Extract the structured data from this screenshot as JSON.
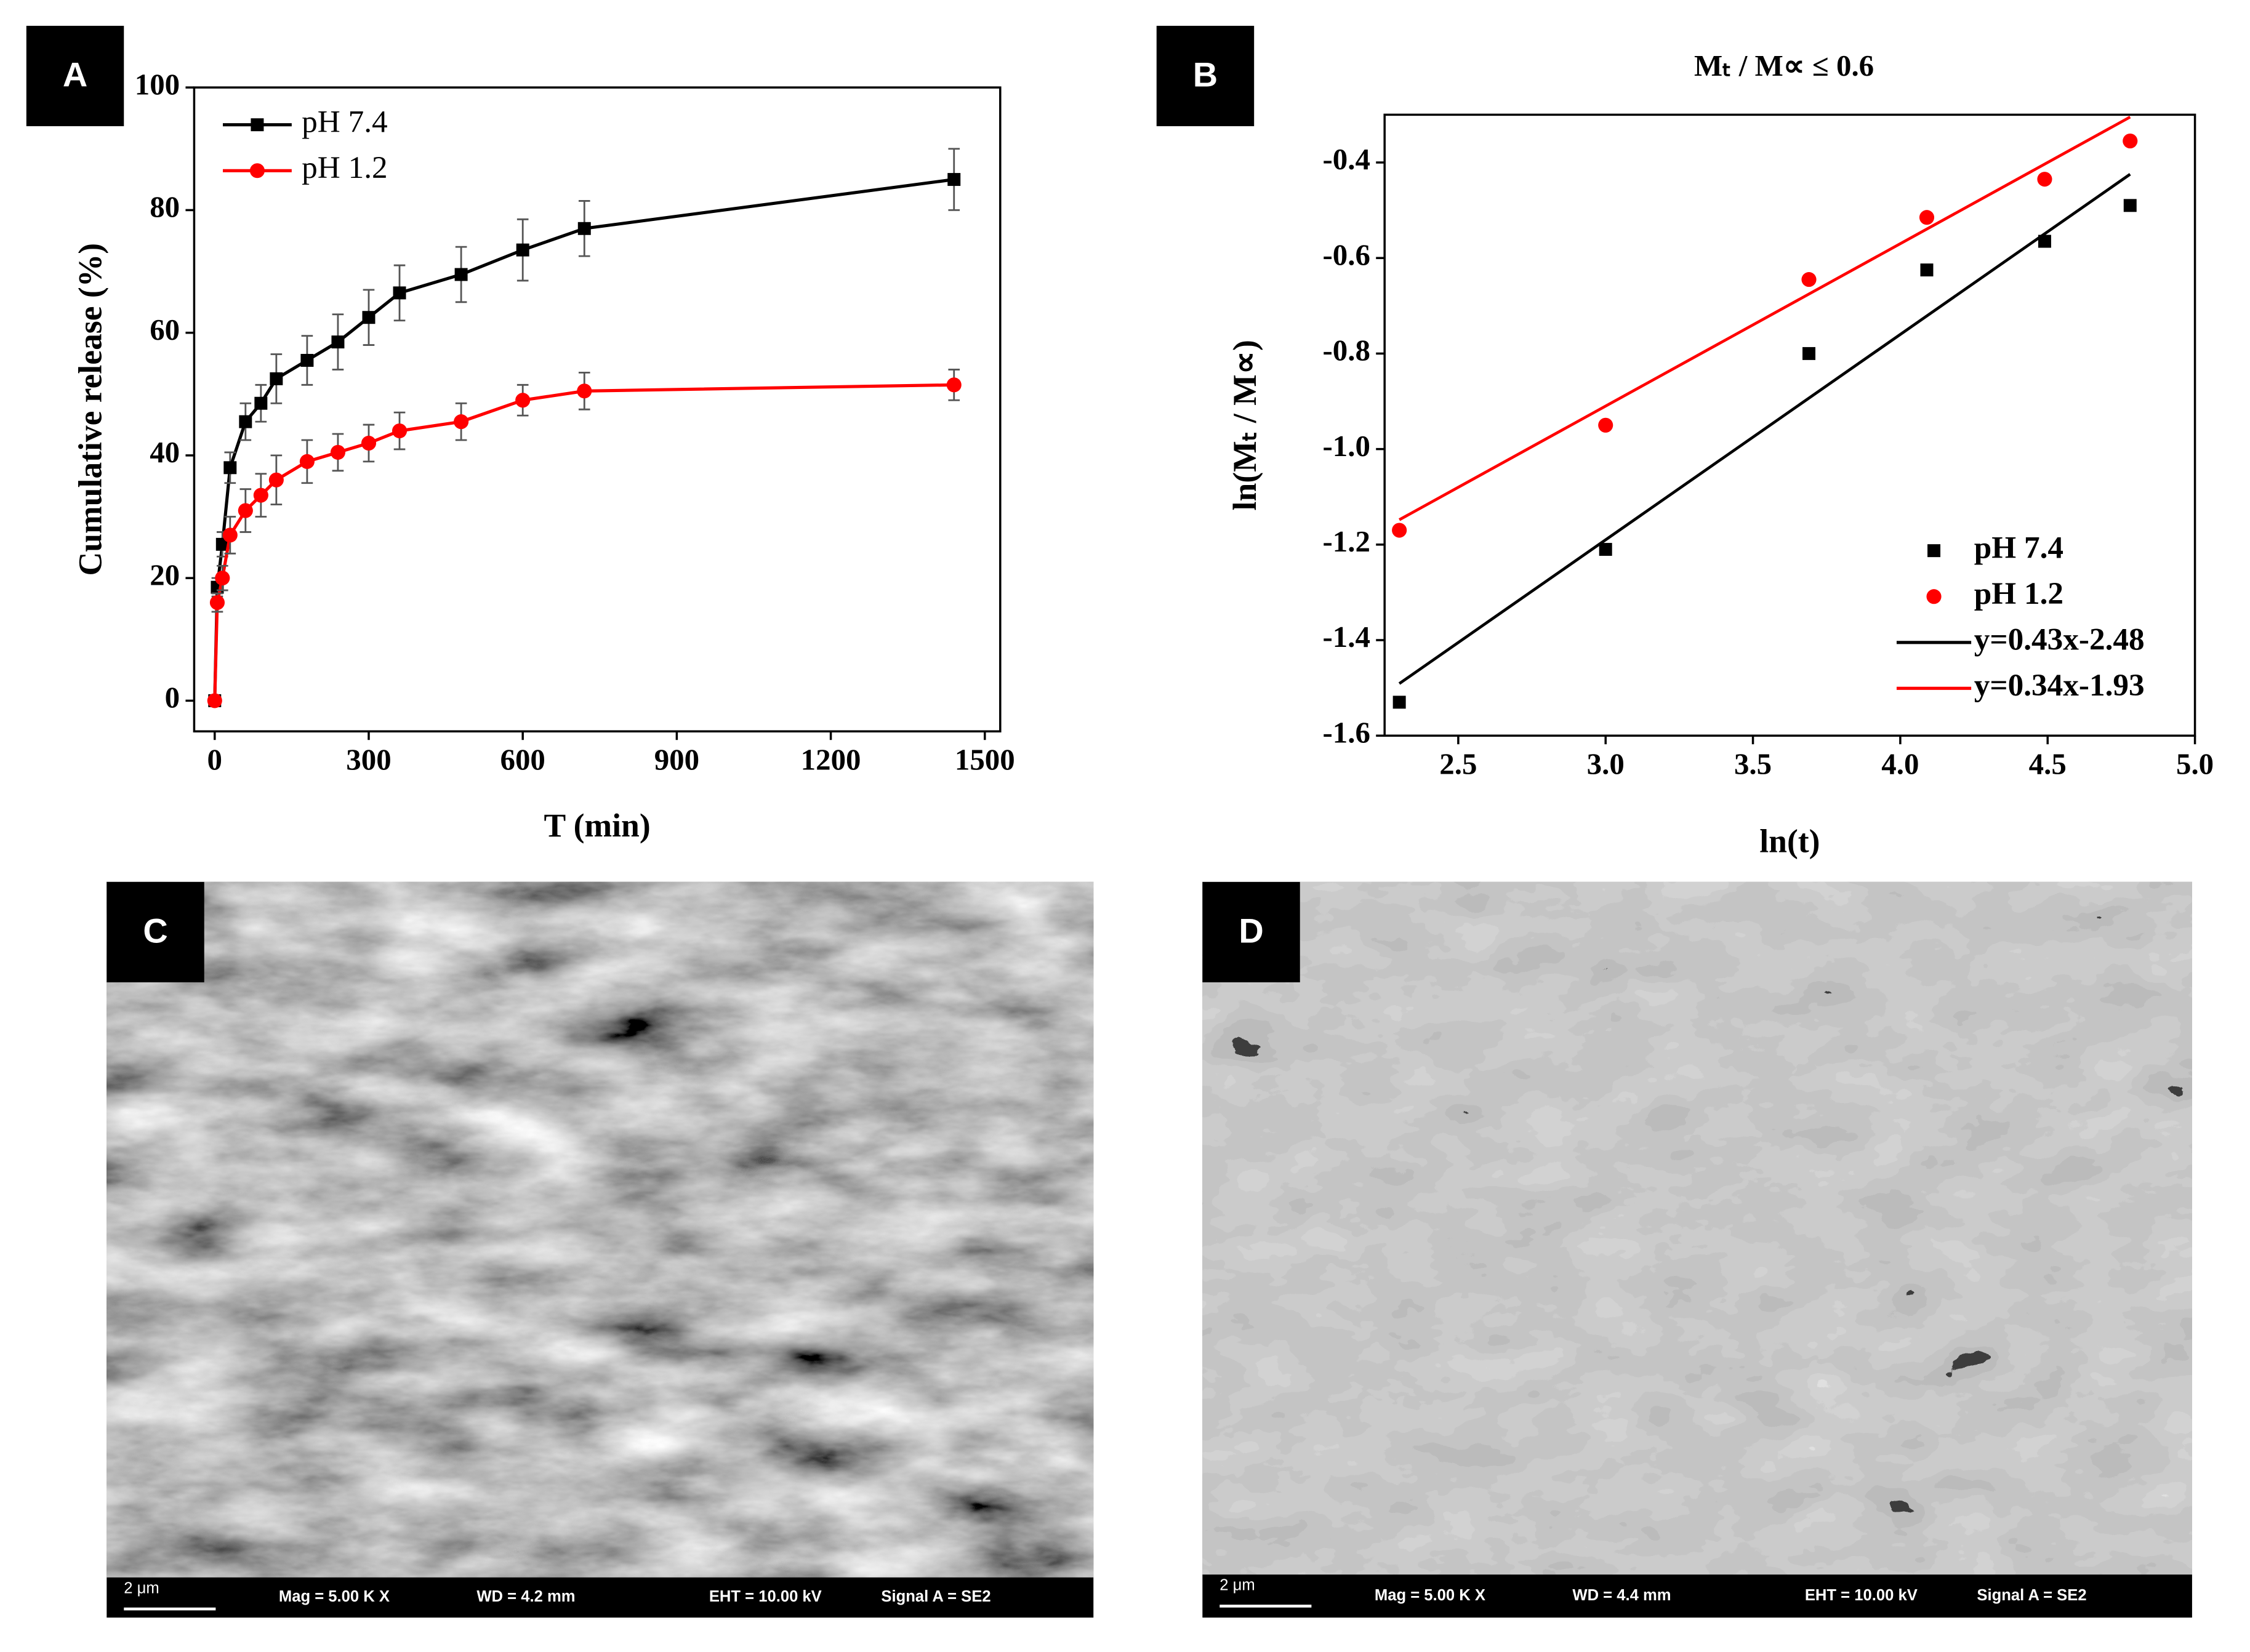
{
  "panel_labels": [
    "A",
    "B",
    "C",
    "D"
  ],
  "chart_data": [
    {
      "type": "line",
      "xlabel": "T (min)",
      "ylabel": "Cumulative release (%)",
      "x": [
        0,
        5,
        15,
        30,
        60,
        90,
        120,
        180,
        240,
        300,
        360,
        480,
        600,
        720,
        1440
      ],
      "series": [
        {
          "name": "pH 7.4",
          "color": "#000000",
          "marker": "square",
          "values": [
            0,
            18.5,
            25.5,
            38,
            45.5,
            48.5,
            52.5,
            55.5,
            58.5,
            62.5,
            66.5,
            69.5,
            73.5,
            77,
            85
          ],
          "errors": [
            0,
            1.5,
            2,
            2.5,
            3,
            3,
            4,
            4,
            4.5,
            4.5,
            4.5,
            4.5,
            5,
            4.5,
            5
          ]
        },
        {
          "name": "pH 1.2",
          "color": "#ff0000",
          "marker": "circle",
          "values": [
            0,
            16,
            20,
            27,
            31,
            33.5,
            36,
            39,
            40.5,
            42,
            44,
            45.5,
            49,
            50.5,
            51.5
          ],
          "errors": [
            0,
            1.5,
            2,
            3,
            3.5,
            3.5,
            4,
            3.5,
            3,
            3,
            3,
            3,
            2.5,
            3,
            2.5
          ]
        }
      ],
      "xlim": [
        -40,
        1530
      ],
      "ylim": [
        -5,
        100
      ],
      "xticks": [
        0,
        300,
        600,
        900,
        1200,
        1500
      ],
      "yticks": [
        0,
        20,
        40,
        60,
        80,
        100
      ],
      "legend": "upper left"
    },
    {
      "type": "scatter",
      "title": "Mₜ / M∝ ≤ 0.6",
      "xlabel": "ln(t)",
      "ylabel": "ln(Mₜ / M∝)",
      "series": [
        {
          "name": "pH 7.4",
          "color": "#000000",
          "style": "markers",
          "marker": "square",
          "x": [
            2.3,
            3.0,
            3.69,
            4.09,
            4.49,
            4.78
          ],
          "values": [
            -1.53,
            -1.21,
            -0.8,
            -0.625,
            -0.565,
            -0.49
          ]
        },
        {
          "name": "pH 1.2",
          "color": "#ff0000",
          "style": "markers",
          "marker": "circle",
          "x": [
            2.3,
            3.0,
            3.69,
            4.09,
            4.49,
            4.78
          ],
          "values": [
            -1.17,
            -0.95,
            -0.645,
            -0.515,
            -0.435,
            -0.355
          ]
        },
        {
          "name": "y=0.43x-2.48",
          "color": "#000000",
          "style": "line",
          "x": [
            2.3,
            4.78
          ],
          "values": [
            -1.491,
            -0.4246
          ]
        },
        {
          "name": "y=0.34x-1.93",
          "color": "#ff0000",
          "style": "line",
          "x": [
            2.3,
            4.78
          ],
          "values": [
            -1.148,
            -0.3048
          ]
        }
      ],
      "xlim": [
        2.25,
        5.0
      ],
      "ylim": [
        -1.6,
        -0.3
      ],
      "xticks": [
        2.5,
        {
          "value": 3,
          "label": "3.0"
        },
        3.5,
        {
          "value": 4,
          "label": "4.0"
        },
        4.5,
        {
          "value": 5,
          "label": "5.0"
        }
      ],
      "yticks": [
        -0.4,
        -0.6,
        -0.8,
        {
          "value": -1,
          "label": "-1.0"
        },
        -1.2,
        -1.4,
        -1.6
      ],
      "legend": "lower right"
    }
  ],
  "sem_images": [
    {
      "scale": "2 μm",
      "mag": "Mag =   5.00 K X",
      "wd": "WD =  4.2 mm",
      "eht": "EHT = 10.00 kV",
      "signal": "Signal A = SE2"
    },
    {
      "scale": "2 μm",
      "mag": "Mag =   5.00 K X",
      "wd": "WD =  4.4 mm",
      "eht": "EHT = 10.00 kV",
      "signal": "Signal A = SE2"
    }
  ]
}
